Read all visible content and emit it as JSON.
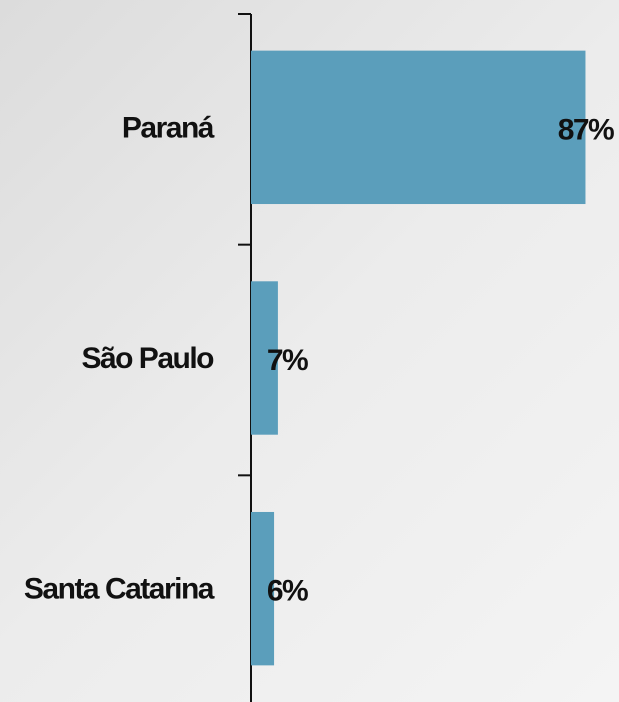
{
  "chart_data": {
    "type": "bar",
    "orientation": "horizontal",
    "categories": [
      "Paraná",
      "São Paulo",
      "Santa Catarina"
    ],
    "values": [
      87,
      7,
      6
    ],
    "value_labels": [
      "87%",
      "7%",
      "6%"
    ],
    "color": "#5b9ebb",
    "xlim": [
      0,
      90
    ]
  }
}
